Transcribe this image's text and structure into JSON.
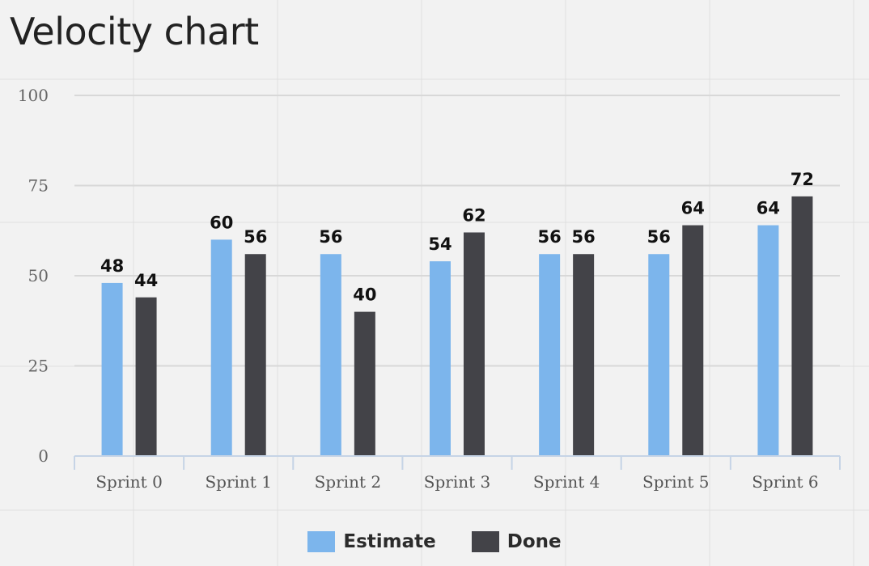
{
  "chart_data": {
    "type": "bar",
    "title": "Velocity chart",
    "categories": [
      "Sprint 0",
      "Sprint 1",
      "Sprint 2",
      "Sprint 3",
      "Sprint 4",
      "Sprint 5",
      "Sprint 6"
    ],
    "series": [
      {
        "name": "Estimate",
        "values": [
          48,
          60,
          56,
          54,
          56,
          56,
          64
        ],
        "color": "#7cb5ec"
      },
      {
        "name": "Done",
        "values": [
          44,
          56,
          40,
          62,
          56,
          64,
          72
        ],
        "color": "#434348"
      }
    ],
    "yticks": [
      "0",
      "25",
      "50",
      "75",
      "100"
    ],
    "ylim": [
      0,
      100
    ],
    "grid": true,
    "legend": "bottom-center",
    "data_labels": true
  }
}
